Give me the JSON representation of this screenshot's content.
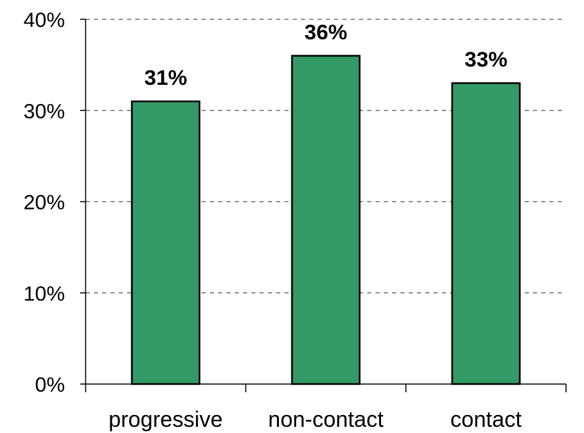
{
  "chart_data": {
    "type": "bar",
    "categories": [
      "progressive",
      "non-contact",
      "contact"
    ],
    "values": [
      31,
      36,
      33
    ],
    "data_labels": [
      "31%",
      "36%",
      "33%"
    ],
    "ylim": [
      0,
      40
    ],
    "yticks": [
      0,
      10,
      20,
      30,
      40
    ],
    "ytick_labels": [
      "0%",
      "10%",
      "20%",
      "30%",
      "40%"
    ],
    "grid": "horizontal dashed",
    "legend": "none",
    "colors": {
      "bar": "#339966",
      "bar_stroke": "#000000",
      "grid": "#555555",
      "axis": "#000000"
    }
  }
}
